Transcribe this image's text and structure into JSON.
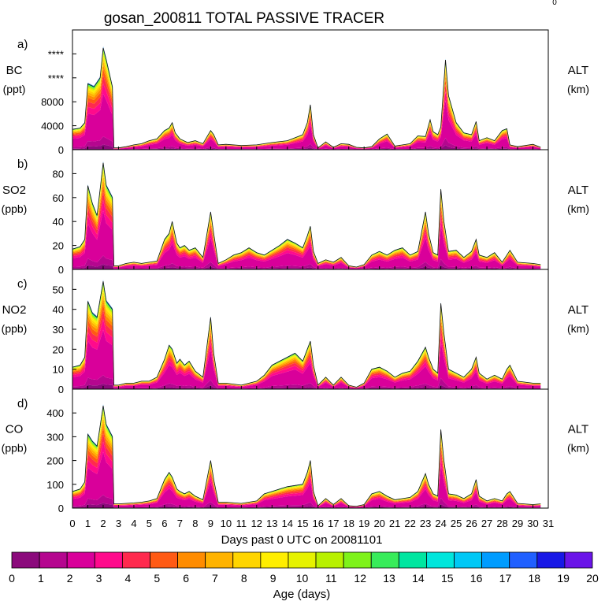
{
  "title": "gosan_200811 TOTAL PASSIVE TRACER",
  "corner_mark": "0",
  "xlabel": "Days past 0 UTC on 20081101",
  "colorbar": {
    "label": "Age (days)",
    "ticks": [
      "0",
      "1",
      "2",
      "3",
      "4",
      "5",
      "6",
      "7",
      "8",
      "9",
      "10",
      "11",
      "12",
      "13",
      "14",
      "15",
      "16",
      "17",
      "18",
      "19",
      "20"
    ],
    "colors": [
      "#8b0a7c",
      "#b5068f",
      "#d9009a",
      "#ff0a8c",
      "#ff2a4e",
      "#ff5a14",
      "#ff8c00",
      "#ffb300",
      "#ffd500",
      "#ffee00",
      "#e6f200",
      "#b8f000",
      "#7ef21a",
      "#38ec5a",
      "#00e6a0",
      "#00e6dc",
      "#00c8f5",
      "#009cff",
      "#2060ff",
      "#1818e6",
      "#6a14e8"
    ]
  },
  "chart_data": {
    "type": "area",
    "x_ticks": [
      "0",
      "1",
      "2",
      "3",
      "4",
      "5",
      "6",
      "7",
      "8",
      "9",
      "10",
      "11",
      "12",
      "13",
      "14",
      "15",
      "16",
      "17",
      "18",
      "19",
      "20",
      "21",
      "22",
      "23",
      "24",
      "25",
      "26",
      "27",
      "28",
      "29",
      "30",
      "31"
    ],
    "xlim": [
      0,
      31
    ],
    "panels": [
      {
        "id": "a",
        "letter": "a)",
        "species": "BC",
        "units": "(ppt)",
        "ylim": [
          0,
          20000
        ],
        "yticks": [
          {
            "v": 0,
            "label": "0"
          },
          {
            "v": 4000,
            "label": "4000"
          },
          {
            "v": 8000,
            "label": "8000"
          },
          {
            "v": 12000,
            "label": "****"
          },
          {
            "v": 16000,
            "label": "****"
          }
        ],
        "right_label": "ALT",
        "right_units": "(km)",
        "x": [
          0,
          0.5,
          0.8,
          1,
          1.4,
          1.8,
          2,
          2.2,
          2.6,
          2.7,
          3,
          3.5,
          4,
          4.5,
          5,
          5.5,
          6,
          6.3,
          6.5,
          6.7,
          7,
          7.5,
          8,
          8.5,
          9,
          9.2,
          9.5,
          10,
          11,
          12,
          13,
          14,
          15,
          15.3,
          15.5,
          15.7,
          16,
          16.5,
          17,
          17.5,
          18,
          18.5,
          19,
          19.5,
          20,
          20.5,
          21,
          22,
          22.5,
          23,
          23.3,
          23.5,
          23.8,
          24,
          24.3,
          24.5,
          25,
          25.5,
          26,
          26.3,
          26.5,
          27,
          27.5,
          28,
          28.3,
          28.5,
          29,
          30,
          30.5
        ],
        "total": [
          3400,
          3600,
          4500,
          11000,
          10500,
          12000,
          17000,
          15000,
          10500,
          300,
          300,
          500,
          800,
          1000,
          1500,
          1800,
          3200,
          3600,
          4500,
          2800,
          1800,
          1200,
          1500,
          1000,
          3200,
          2500,
          800,
          900,
          700,
          800,
          1200,
          1500,
          2500,
          4500,
          7500,
          2500,
          300,
          1300,
          400,
          1000,
          900,
          400,
          300,
          500,
          1800,
          2600,
          600,
          1000,
          2300,
          2200,
          5000,
          3000,
          2500,
          3800,
          15000,
          9000,
          4500,
          2800,
          2500,
          4700,
          1500,
          2000,
          1500,
          3200,
          3500,
          800,
          500,
          900,
          400
        ]
      },
      {
        "id": "b",
        "letter": "b)",
        "species": "SO2",
        "units": "(ppb)",
        "ylim": [
          0,
          100
        ],
        "yticks": [
          {
            "v": 0,
            "label": "0"
          },
          {
            "v": 20,
            "label": "20"
          },
          {
            "v": 40,
            "label": "40"
          },
          {
            "v": 60,
            "label": "60"
          },
          {
            "v": 80,
            "label": "80"
          }
        ],
        "right_label": "ALT",
        "right_units": "(km)",
        "x": [
          0,
          0.5,
          0.8,
          1,
          1.3,
          1.6,
          2,
          2.2,
          2.6,
          2.7,
          3,
          3.5,
          4,
          4.5,
          5,
          5.5,
          6,
          6.3,
          6.5,
          6.8,
          7,
          7.3,
          7.6,
          8,
          8.5,
          9,
          9.2,
          9.5,
          10,
          10.5,
          11,
          11.5,
          12,
          12.5,
          13,
          13.5,
          14,
          14.5,
          15,
          15.3,
          15.5,
          15.7,
          16,
          16.5,
          17,
          17.5,
          18,
          18.5,
          19,
          19.5,
          20,
          20.5,
          21,
          21.5,
          22,
          22.5,
          23,
          23.2,
          23.5,
          23.8,
          24,
          24.2,
          24.5,
          25,
          25.5,
          26,
          26.3,
          26.5,
          27,
          27.5,
          28,
          28.3,
          28.5,
          29,
          30,
          30.5
        ],
        "total": [
          17,
          19,
          25,
          70,
          55,
          45,
          89,
          70,
          60,
          3,
          3,
          5,
          6,
          5,
          6,
          7,
          25,
          30,
          40,
          22,
          18,
          20,
          16,
          18,
          10,
          48,
          30,
          5,
          8,
          12,
          14,
          18,
          14,
          12,
          16,
          20,
          25,
          22,
          18,
          28,
          36,
          15,
          5,
          8,
          6,
          10,
          3,
          2,
          4,
          12,
          15,
          12,
          16,
          18,
          12,
          15,
          48,
          30,
          14,
          12,
          67,
          40,
          15,
          16,
          10,
          15,
          25,
          12,
          10,
          14,
          6,
          12,
          16,
          6,
          5,
          4
        ]
      },
      {
        "id": "c",
        "letter": "c)",
        "species": "NO2",
        "units": "(ppb)",
        "ylim": [
          0,
          60
        ],
        "yticks": [
          {
            "v": 0,
            "label": "0"
          },
          {
            "v": 10,
            "label": "10"
          },
          {
            "v": 20,
            "label": "20"
          },
          {
            "v": 30,
            "label": "30"
          },
          {
            "v": 40,
            "label": "40"
          },
          {
            "v": 50,
            "label": "50"
          }
        ],
        "right_label": "ALT",
        "right_units": "(km)",
        "x": [
          0,
          0.5,
          0.8,
          1,
          1.3,
          1.6,
          2,
          2.2,
          2.6,
          2.7,
          3,
          3.5,
          4,
          4.5,
          5,
          5.5,
          6,
          6.3,
          6.5,
          6.8,
          7,
          7.3,
          7.6,
          8,
          8.5,
          9,
          9.2,
          9.5,
          10,
          11,
          12,
          12.5,
          13,
          13.5,
          14,
          14.5,
          15,
          15.3,
          15.5,
          15.7,
          16,
          16.5,
          17,
          17.5,
          18,
          18.5,
          19,
          19.5,
          20,
          20.5,
          21,
          21.5,
          22,
          22.5,
          23,
          23.2,
          23.5,
          23.8,
          24,
          24.2,
          24.5,
          25,
          25.5,
          26,
          26.3,
          26.5,
          27,
          27.5,
          28,
          28.3,
          28.5,
          29,
          30,
          30.5
        ],
        "total": [
          11,
          12,
          16,
          44,
          38,
          36,
          54,
          44,
          40,
          2,
          2,
          3,
          3,
          4,
          4,
          6,
          15,
          22,
          20,
          13,
          15,
          12,
          14,
          9,
          6,
          36,
          18,
          3,
          3,
          2,
          4,
          7,
          12,
          14,
          16,
          18,
          14,
          20,
          24,
          12,
          2,
          6,
          2,
          6,
          2,
          1,
          3,
          10,
          11,
          9,
          6,
          8,
          9,
          14,
          21,
          16,
          10,
          8,
          43,
          28,
          10,
          8,
          6,
          10,
          16,
          8,
          5,
          7,
          5,
          10,
          12,
          4,
          3,
          3
        ]
      },
      {
        "id": "d",
        "letter": "d)",
        "species": "CO",
        "units": "(ppb)",
        "ylim": [
          0,
          500
        ],
        "yticks": [
          {
            "v": 0,
            "label": "0"
          },
          {
            "v": 100,
            "label": "100"
          },
          {
            "v": 200,
            "label": "200"
          },
          {
            "v": 300,
            "label": "300"
          },
          {
            "v": 400,
            "label": "400"
          }
        ],
        "right_label": "ALT",
        "right_units": "(km)",
        "x": [
          0,
          0.5,
          0.8,
          1,
          1.3,
          1.6,
          2,
          2.2,
          2.6,
          2.7,
          3,
          3.5,
          4,
          4.5,
          5,
          5.5,
          6,
          6.3,
          6.5,
          6.8,
          7,
          7.3,
          7.6,
          8,
          8.5,
          9,
          9.2,
          9.5,
          10,
          11,
          12,
          12.5,
          13,
          13.5,
          14,
          14.5,
          15,
          15.3,
          15.5,
          15.7,
          16,
          16.5,
          17,
          17.5,
          18,
          18.5,
          19,
          19.5,
          20,
          20.5,
          21,
          21.5,
          22,
          22.5,
          23,
          23.2,
          23.5,
          23.8,
          24,
          24.2,
          24.5,
          25,
          25.5,
          26,
          26.3,
          26.5,
          27,
          27.5,
          28,
          28.3,
          28.5,
          29,
          30,
          30.5
        ],
        "total": [
          70,
          80,
          110,
          310,
          280,
          260,
          430,
          350,
          300,
          18,
          18,
          20,
          22,
          25,
          30,
          40,
          120,
          150,
          130,
          80,
          70,
          60,
          70,
          50,
          35,
          200,
          120,
          25,
          25,
          20,
          30,
          60,
          70,
          80,
          90,
          95,
          100,
          150,
          200,
          70,
          10,
          40,
          15,
          40,
          10,
          8,
          15,
          60,
          70,
          50,
          35,
          40,
          45,
          70,
          145,
          100,
          60,
          50,
          330,
          200,
          60,
          55,
          40,
          60,
          120,
          50,
          30,
          40,
          30,
          60,
          70,
          20,
          15,
          18
        ]
      }
    ]
  }
}
